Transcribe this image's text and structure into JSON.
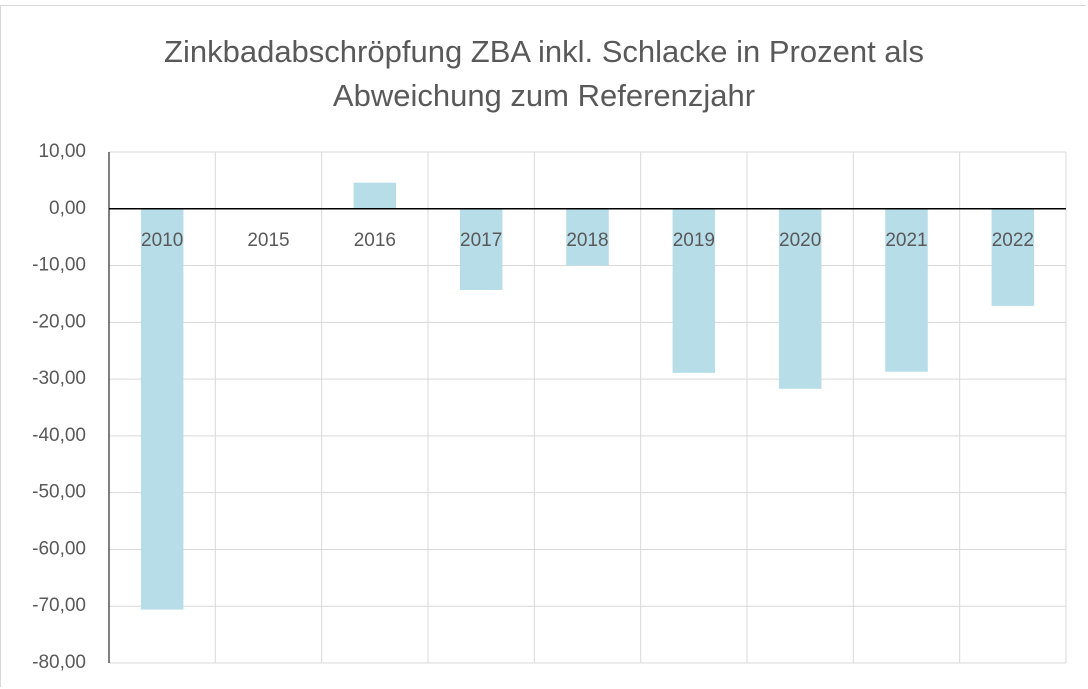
{
  "chart_data": {
    "type": "bar",
    "title": "Zinkbadabschröpfung ZBA inkl. Schlacke in Prozent als Abweichung zum Referenzjahr",
    "categories": [
      "2010",
      "2015",
      "2016",
      "2017",
      "2018",
      "2019",
      "2020",
      "2021",
      "2022"
    ],
    "values": [
      -70.6,
      0,
      4.6,
      -14.3,
      -10.0,
      -28.9,
      -31.7,
      -28.7,
      -17.1
    ],
    "color": "#b7dde8",
    "ylim": [
      -80,
      10
    ],
    "yticks": [
      {
        "value": 10,
        "label": "10,00"
      },
      {
        "value": 0,
        "label": "0,00"
      },
      {
        "value": -10,
        "label": "-10,00"
      },
      {
        "value": -20,
        "label": "-20,00"
      },
      {
        "value": -30,
        "label": "-30,00"
      },
      {
        "value": -40,
        "label": "-40,00"
      },
      {
        "value": -50,
        "label": "-50,00"
      },
      {
        "value": -60,
        "label": "-60,00"
      },
      {
        "value": -70,
        "label": "-70,00"
      },
      {
        "value": -80,
        "label": "-80,00"
      }
    ],
    "grid": true
  }
}
